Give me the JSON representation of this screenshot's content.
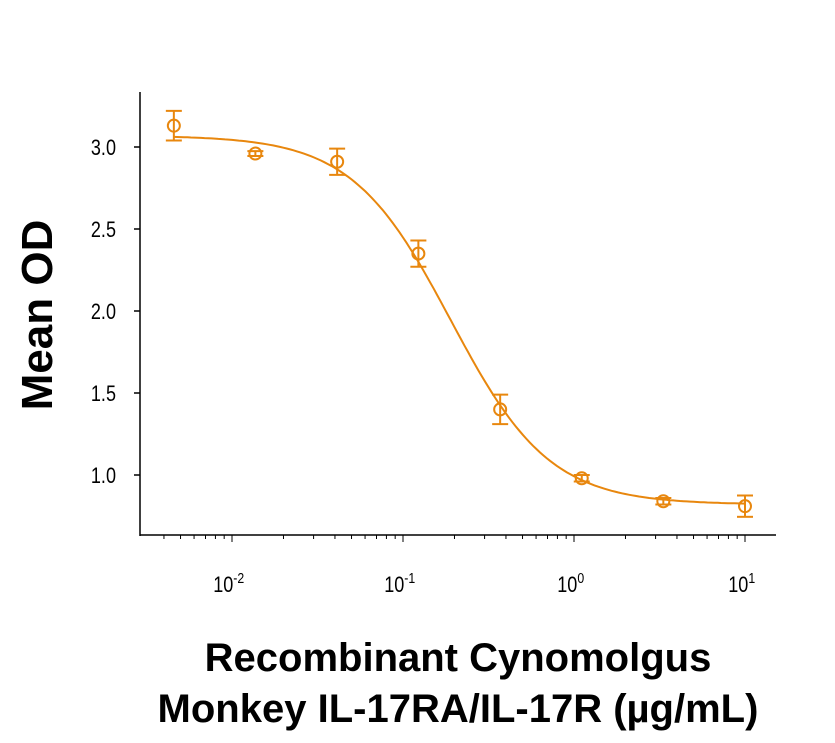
{
  "chart_data": {
    "type": "scatter",
    "title": "",
    "xlabel_lines": [
      "Recombinant Cynomolgus",
      "Monkey IL-17RA/IL-17R (µg/mL)"
    ],
    "ylabel": "Mean OD",
    "x_scale": "log",
    "xlim": [
      0.003,
      15
    ],
    "ylim": [
      0.63,
      3.33
    ],
    "x_ticks": [
      {
        "base": "10",
        "exp": "-2",
        "value": 0.01
      },
      {
        "base": "10",
        "exp": "-1",
        "value": 0.1
      },
      {
        "base": "10",
        "exp": "0",
        "value": 1
      },
      {
        "base": "10",
        "exp": "1",
        "value": 10
      }
    ],
    "y_ticks": [
      "1.0",
      "1.5",
      "2.0",
      "2.5",
      "3.0"
    ],
    "grid": false,
    "color": "#E8870E",
    "series": [
      {
        "x": [
          0.00457,
          0.0137,
          0.0412,
          0.123,
          0.37,
          1.11,
          3.33,
          10
        ],
        "y": [
          3.13,
          2.96,
          2.91,
          2.35,
          1.4,
          0.98,
          0.84,
          0.81
        ],
        "error": [
          0.09,
          0.015,
          0.08,
          0.08,
          0.09,
          0.02,
          0.02,
          0.065
        ]
      }
    ],
    "fit": {
      "model": "4PL",
      "top": 3.07,
      "bottom": 0.82,
      "ec50": 0.19,
      "hill": 1.5
    }
  }
}
